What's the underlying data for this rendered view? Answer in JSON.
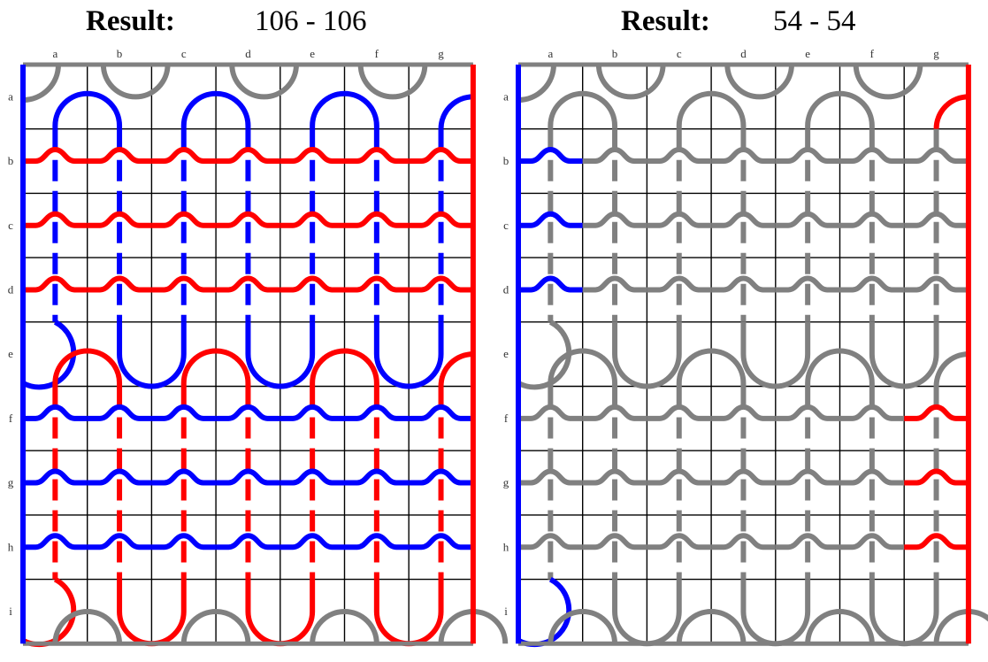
{
  "colors": {
    "red": "#ff0000",
    "blue": "#0000ff",
    "gray": "#808080",
    "grid": "#000000",
    "frame": "#808080"
  },
  "columns": [
    "a",
    "b",
    "c",
    "d",
    "e",
    "f",
    "g"
  ],
  "rows": [
    "a",
    "b",
    "c",
    "d",
    "e",
    "f",
    "g",
    "h",
    "i"
  ],
  "boards": [
    {
      "result_label": "Result:",
      "score": "106 - 106",
      "left_edge": "blue",
      "right_edge": "red",
      "top_arcs": "gray",
      "blue_top_arcs": "blue",
      "blue_bottom_arcs": "blue",
      "red_top_arcs": "red",
      "red_bottom_arcs": "red",
      "bottom_arcs": "gray",
      "arc_a_right": "blue",
      "arc_e_left": "blue",
      "arc_e_right": "red",
      "arc_i_left": "red",
      "vertical_top": [
        "blue",
        "blue",
        "blue",
        "blue",
        "blue",
        "blue",
        "blue"
      ],
      "vertical_bottom": [
        "red",
        "red",
        "red",
        "red",
        "red",
        "red",
        "red"
      ],
      "wave_rows_top": [
        "red",
        "red",
        "red",
        "red",
        "red",
        "red",
        "red"
      ],
      "wave_rows_bottom": [
        "blue",
        "blue",
        "blue",
        "blue",
        "blue",
        "blue",
        "blue"
      ]
    },
    {
      "result_label": "Result:",
      "score": "54 - 54",
      "left_edge": "blue",
      "right_edge": "red",
      "top_arcs": "gray",
      "blue_top_arcs": "gray",
      "blue_bottom_arcs": "gray",
      "red_top_arcs": "gray",
      "red_bottom_arcs": "gray",
      "bottom_arcs": "gray",
      "arc_a_right": "red",
      "arc_e_left": "gray",
      "arc_e_right": "gray",
      "arc_i_left": "blue",
      "vertical_top": [
        "gray",
        "gray",
        "gray",
        "gray",
        "gray",
        "gray",
        "gray"
      ],
      "vertical_bottom": [
        "gray",
        "gray",
        "gray",
        "gray",
        "gray",
        "gray",
        "gray"
      ],
      "wave_rows_top": [
        "blue",
        "gray",
        "gray",
        "gray",
        "gray",
        "gray",
        "gray"
      ],
      "wave_rows_bottom": [
        "gray",
        "gray",
        "gray",
        "gray",
        "gray",
        "gray",
        "red"
      ]
    }
  ]
}
